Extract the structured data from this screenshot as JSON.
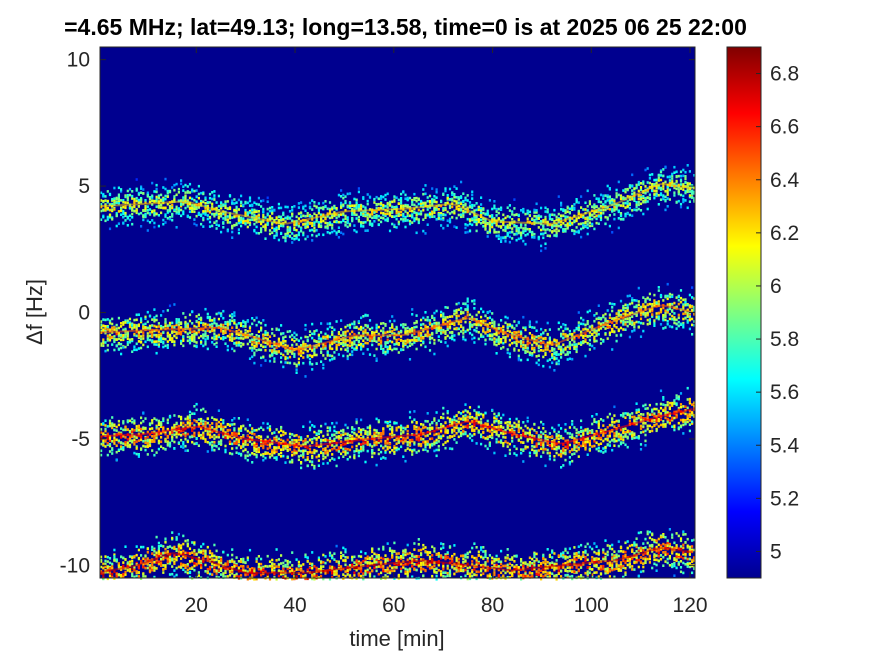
{
  "chart_data": {
    "type": "heatmap",
    "title": "=4.65 MHz;  lat=49.13; long=13.58, time=0 is at 2025 06 25 22:00",
    "xlabel": "time [min]",
    "ylabel": "Δf [Hz]",
    "xlim": [
      0.5,
      121
    ],
    "ylim": [
      -10.5,
      10.5
    ],
    "xticks": [
      20,
      40,
      60,
      80,
      100,
      120
    ],
    "yticks": [
      10,
      5,
      0,
      -5,
      -10
    ],
    "colormap": "jet",
    "clim": [
      4.9,
      6.9
    ],
    "colorbar_ticks": [
      6.8,
      6.6,
      6.4,
      6.2,
      6,
      5.8,
      5.6,
      5.4,
      5.2,
      5
    ],
    "background_value": 4.9,
    "bands": [
      {
        "x": [
          0,
          10,
          18,
          25,
          38,
          50,
          62,
          72,
          80,
          92,
          105,
          114,
          121
        ],
        "y": [
          4.2,
          4.3,
          4.4,
          4.0,
          3.5,
          4.0,
          4.1,
          4.3,
          3.6,
          3.5,
          4.3,
          5.1,
          4.9
        ],
        "peak": 6.4
      },
      {
        "x": [
          0,
          10,
          25,
          32,
          40,
          52,
          62,
          75,
          82,
          92,
          105,
          114,
          121
        ],
        "y": [
          -0.8,
          -0.7,
          -0.6,
          -1.0,
          -1.5,
          -0.9,
          -0.9,
          -0.2,
          -0.8,
          -1.3,
          -0.3,
          0.3,
          0.0
        ],
        "peak": 6.6
      },
      {
        "x": [
          0,
          10,
          20,
          30,
          42,
          55,
          66,
          75,
          84,
          94,
          105,
          114,
          121
        ],
        "y": [
          -4.9,
          -4.8,
          -4.5,
          -5.0,
          -5.3,
          -5.0,
          -4.8,
          -4.3,
          -4.8,
          -5.2,
          -4.6,
          -4.1,
          -3.8
        ],
        "peak": 6.8
      },
      {
        "x": [
          0,
          8,
          15,
          22,
          30,
          42,
          55,
          66,
          75,
          84,
          94,
          105,
          114,
          121
        ],
        "y": [
          -10.3,
          -10.0,
          -9.5,
          -9.8,
          -10.3,
          -10.3,
          -10.0,
          -9.8,
          -10.0,
          -10.2,
          -10.0,
          -9.8,
          -9.3,
          -9.5
        ],
        "peak": 6.9
      }
    ]
  }
}
